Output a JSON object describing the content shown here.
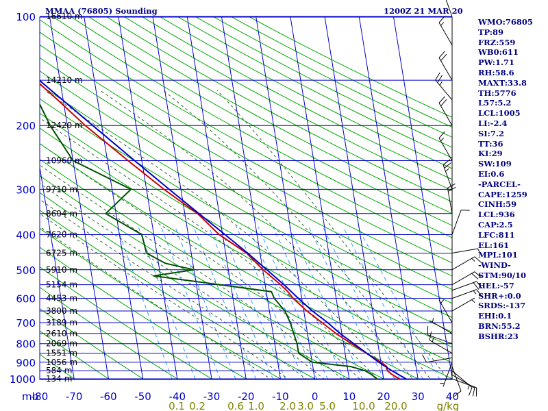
{
  "header": {
    "title": "MMAA (76805) Sounding",
    "time": "1200Z 21 MAR 20"
  },
  "indices": [
    "WMO:76805",
    "TP:89",
    "FRZ:559",
    "WB0:611",
    "PW:1.71",
    "RH:58.6",
    "MAXT:33.8",
    "TH:5776",
    "L57:5.2",
    "LCL:1005",
    "LI:-2.4",
    "SI:7.2",
    "TT:36",
    "KI:29",
    "SW:109",
    "EI:0.6",
    "-PARCEL-",
    "CAPE:1259",
    "CINH:59",
    "LCL:936",
    "CAP:2.5",
    "LFC:811",
    "EL:161",
    "MPL:101",
    "-WIND-",
    "STM:90/10",
    "HEL:-57",
    "SHR+:0.0",
    "SRDS:-137",
    "EHI:0.1",
    "BRN:55.2",
    "BSHR:23"
  ],
  "colors": {
    "isobar_isotherm": "#0000cc",
    "dry_adiabat": "#00aa00",
    "moist_adiabat": "#336633",
    "mixing_ratio": "#3399ff",
    "temperature": "#cc0000",
    "dewpoint": "#005000",
    "parcel": "#0000cc",
    "header_text": "#000080",
    "axis_text": "#0000cc",
    "mixing_label_text": "#808000",
    "wind_barb": "#000000"
  },
  "chart_data": {
    "type": "line",
    "chart_kind": "skew-T log-P sounding",
    "x_unit_label": "mb",
    "y_log_scale": true,
    "pressure_range_mb": [
      1000,
      100
    ],
    "temperature_range_c": [
      -80,
      40
    ],
    "pressure_ticks": [
      "100",
      "200",
      "300",
      "400",
      "500",
      "600",
      "700",
      "800",
      "900",
      "1000"
    ],
    "temperature_ticks": [
      "-80",
      "-70",
      "-60",
      "-50",
      "-40",
      "-30",
      "-20",
      "-10",
      "0",
      "10",
      "20",
      "30",
      "40"
    ],
    "mixing_ratio_labels": [
      "0.1",
      "0.2",
      "0.6",
      "1.0",
      "2.0",
      "3.0",
      "5.0",
      "10.0",
      "20.0",
      "g/kg"
    ],
    "height_labels": [
      {
        "p": 100,
        "label": "16610 m"
      },
      {
        "p": 150,
        "label": "14210 m"
      },
      {
        "p": 200,
        "label": "12420 m"
      },
      {
        "p": 250,
        "label": "10960 m"
      },
      {
        "p": 300,
        "label": "9710 m"
      },
      {
        "p": 350,
        "label": "8604 m"
      },
      {
        "p": 400,
        "label": "7620 m"
      },
      {
        "p": 450,
        "label": "6725 m"
      },
      {
        "p": 500,
        "label": "5910 m"
      },
      {
        "p": 550,
        "label": "5154 m"
      },
      {
        "p": 600,
        "label": "4453 m"
      },
      {
        "p": 650,
        "label": "3800 m"
      },
      {
        "p": 700,
        "label": "3189 m"
      },
      {
        "p": 750,
        "label": "2610 m"
      },
      {
        "p": 800,
        "label": "2069 m"
      },
      {
        "p": 850,
        "label": "1551 m"
      },
      {
        "p": 900,
        "label": "1056 m"
      },
      {
        "p": 950,
        "label": "584 m"
      },
      {
        "p": 1000,
        "label": "134 m"
      }
    ],
    "series": [
      {
        "key": "temperature",
        "points": [
          [
            1010,
            24.6
          ],
          [
            1000,
            24.5
          ],
          [
            970,
            22.5
          ],
          [
            950,
            21.5
          ],
          [
            925,
            21.5
          ],
          [
            900,
            20.0
          ],
          [
            850,
            16.2
          ],
          [
            800,
            12.3
          ],
          [
            750,
            8.3
          ],
          [
            700,
            4.8
          ],
          [
            650,
            0.9
          ],
          [
            600,
            -2.5
          ],
          [
            575,
            -3.7
          ],
          [
            550,
            -5.5
          ],
          [
            500,
            -9.9
          ],
          [
            450,
            -13.9
          ],
          [
            400,
            -21.0
          ],
          [
            350,
            -26.3
          ],
          [
            300,
            -34.9
          ],
          [
            250,
            -44.0
          ],
          [
            200,
            -54.8
          ],
          [
            170,
            -61.6
          ],
          [
            150,
            -67.0
          ],
          [
            140,
            -65.5
          ],
          [
            125,
            -72.0
          ],
          [
            115,
            -74.5
          ],
          [
            100,
            -77.7
          ]
        ]
      },
      {
        "key": "dewpoint",
        "points": [
          [
            1010,
            18.0
          ],
          [
            1000,
            18.0
          ],
          [
            970,
            16.5
          ],
          [
            950,
            15.0
          ],
          [
            925,
            11.0
          ],
          [
            900,
            0.0
          ],
          [
            850,
            -3.5
          ],
          [
            800,
            -3.5
          ],
          [
            750,
            -4.0
          ],
          [
            700,
            -4.5
          ],
          [
            650,
            -5.5
          ],
          [
            600,
            -8.0
          ],
          [
            575,
            -8.5
          ],
          [
            550,
            -23.0
          ],
          [
            520,
            -42.0
          ],
          [
            500,
            -30.0
          ],
          [
            480,
            -38.0
          ],
          [
            450,
            -43.0
          ],
          [
            400,
            -43.5
          ],
          [
            350,
            -53.0
          ],
          [
            300,
            -44.5
          ],
          [
            250,
            -60.0
          ],
          [
            200,
            -65.0
          ],
          [
            175,
            -67.0
          ],
          [
            150,
            -76.0
          ],
          [
            140,
            -81.0
          ]
        ]
      },
      {
        "key": "parcel",
        "points": [
          [
            1000,
            26.5
          ],
          [
            950,
            22.8
          ],
          [
            900,
            19.4
          ],
          [
            850,
            16.3
          ],
          [
            800,
            13.0
          ],
          [
            750,
            9.5
          ],
          [
            700,
            6.4
          ],
          [
            650,
            2.5
          ],
          [
            600,
            -1.0
          ],
          [
            550,
            -4.5
          ],
          [
            500,
            -8.8
          ],
          [
            450,
            -13.6
          ],
          [
            400,
            -19.3
          ],
          [
            350,
            -25.9
          ],
          [
            300,
            -33.4
          ],
          [
            250,
            -42.1
          ],
          [
            200,
            -52.6
          ],
          [
            150,
            -66.0
          ],
          [
            130,
            -72.5
          ],
          [
            115,
            -78.0
          ],
          [
            110,
            -80.0
          ]
        ]
      }
    ],
    "wind_barbs": [
      {
        "p": 1000,
        "dir": 110,
        "spd": 10
      },
      {
        "p": 975,
        "dir": 120,
        "spd": 10
      },
      {
        "p": 950,
        "dir": 130,
        "spd": 15
      },
      {
        "p": 925,
        "dir": 160,
        "spd": 10
      },
      {
        "p": 900,
        "dir": 200,
        "spd": 5
      },
      {
        "p": 875,
        "dir": 260,
        "spd": 10
      },
      {
        "p": 850,
        "dir": 300,
        "spd": 15
      },
      {
        "p": 800,
        "dir": 290,
        "spd": 10
      },
      {
        "p": 750,
        "dir": 300,
        "spd": 5
      },
      {
        "p": 700,
        "dir": 330,
        "spd": 5
      },
      {
        "p": 650,
        "dir": 60,
        "spd": 5
      },
      {
        "p": 600,
        "dir": 70,
        "spd": 15
      },
      {
        "p": 570,
        "dir": 70,
        "spd": 20
      },
      {
        "p": 550,
        "dir": 60,
        "spd": 20
      },
      {
        "p": 500,
        "dir": 60,
        "spd": 15
      },
      {
        "p": 450,
        "dir": 80,
        "spd": 10
      },
      {
        "p": 400,
        "dir": 20,
        "spd": 10
      },
      {
        "p": 350,
        "dir": 350,
        "spd": 20
      },
      {
        "p": 300,
        "dir": 340,
        "spd": 25
      },
      {
        "p": 250,
        "dir": 330,
        "spd": 15
      },
      {
        "p": 200,
        "dir": 330,
        "spd": 20
      },
      {
        "p": 170,
        "dir": 320,
        "spd": 25
      },
      {
        "p": 150,
        "dir": 330,
        "spd": 20
      },
      {
        "p": 120,
        "dir": 330,
        "spd": 15
      },
      {
        "p": 100,
        "dir": 340,
        "spd": 15
      }
    ]
  }
}
